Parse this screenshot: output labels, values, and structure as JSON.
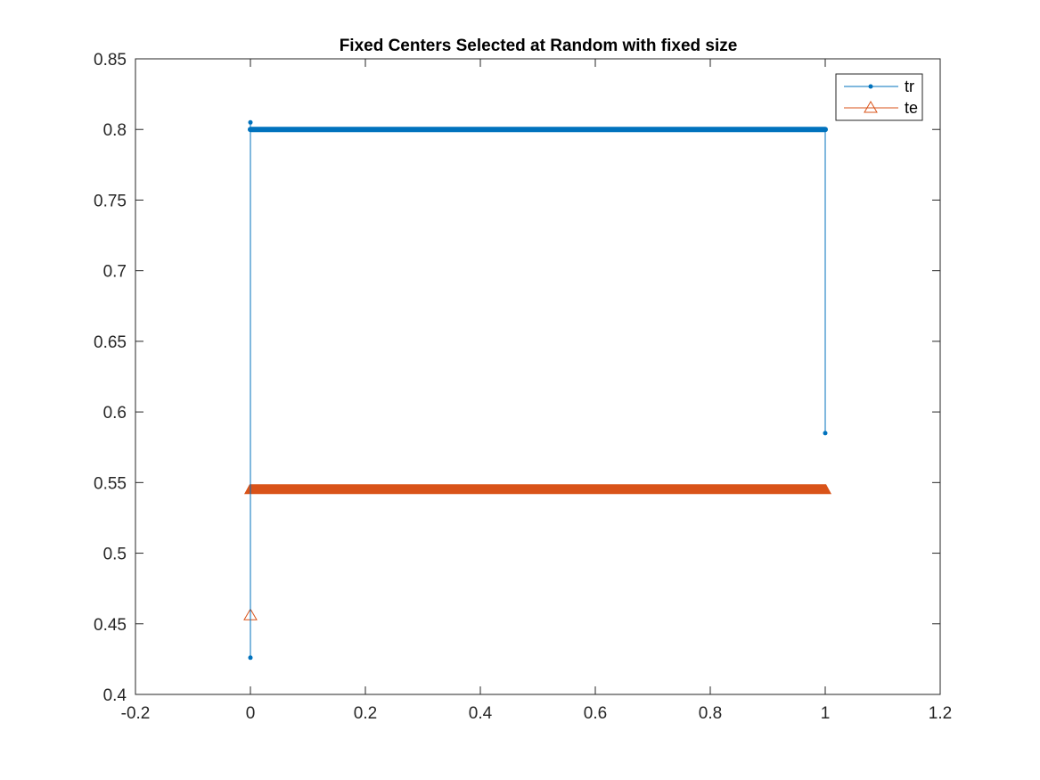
{
  "chart_data": {
    "type": "line",
    "title": "Fixed Centers Selected at Random with fixed size",
    "xlabel": "",
    "ylabel": "",
    "xlim": [
      -0.2,
      1.2
    ],
    "ylim": [
      0.4,
      0.85
    ],
    "xticks": [
      -0.2,
      0,
      0.2,
      0.4,
      0.6,
      0.8,
      1,
      1.2
    ],
    "xtick_labels": [
      "-0.2",
      "0",
      "0.2",
      "0.4",
      "0.6",
      "0.8",
      "1",
      "1.2"
    ],
    "yticks": [
      0.4,
      0.45,
      0.5,
      0.55,
      0.6,
      0.65,
      0.7,
      0.75,
      0.8,
      0.85
    ],
    "ytick_labels": [
      "0.4",
      "0.45",
      "0.5",
      "0.55",
      "0.6",
      "0.65",
      "0.7",
      "0.75",
      "0.8",
      "0.85"
    ],
    "grid": false,
    "legend_position": "top-right",
    "series": [
      {
        "name": "tr",
        "color": "#0072BD",
        "marker": "dot",
        "x": [
          0,
          0,
          0,
          0.1,
          0.2,
          0.3,
          0.4,
          0.5,
          0.6,
          0.7,
          0.8,
          0.9,
          1,
          1
        ],
        "y": [
          0.426,
          0.805,
          0.8,
          0.8,
          0.8,
          0.8,
          0.8,
          0.8,
          0.8,
          0.8,
          0.8,
          0.8,
          0.8,
          0.585
        ]
      },
      {
        "name": "te",
        "color": "#D95319",
        "marker": "triangle",
        "x": [
          0,
          0,
          0.1,
          0.2,
          0.3,
          0.4,
          0.5,
          0.6,
          0.7,
          0.8,
          0.9,
          1
        ],
        "y": [
          0.456,
          0.545,
          0.545,
          0.545,
          0.545,
          0.545,
          0.545,
          0.545,
          0.545,
          0.545,
          0.545,
          0.545
        ]
      }
    ]
  }
}
